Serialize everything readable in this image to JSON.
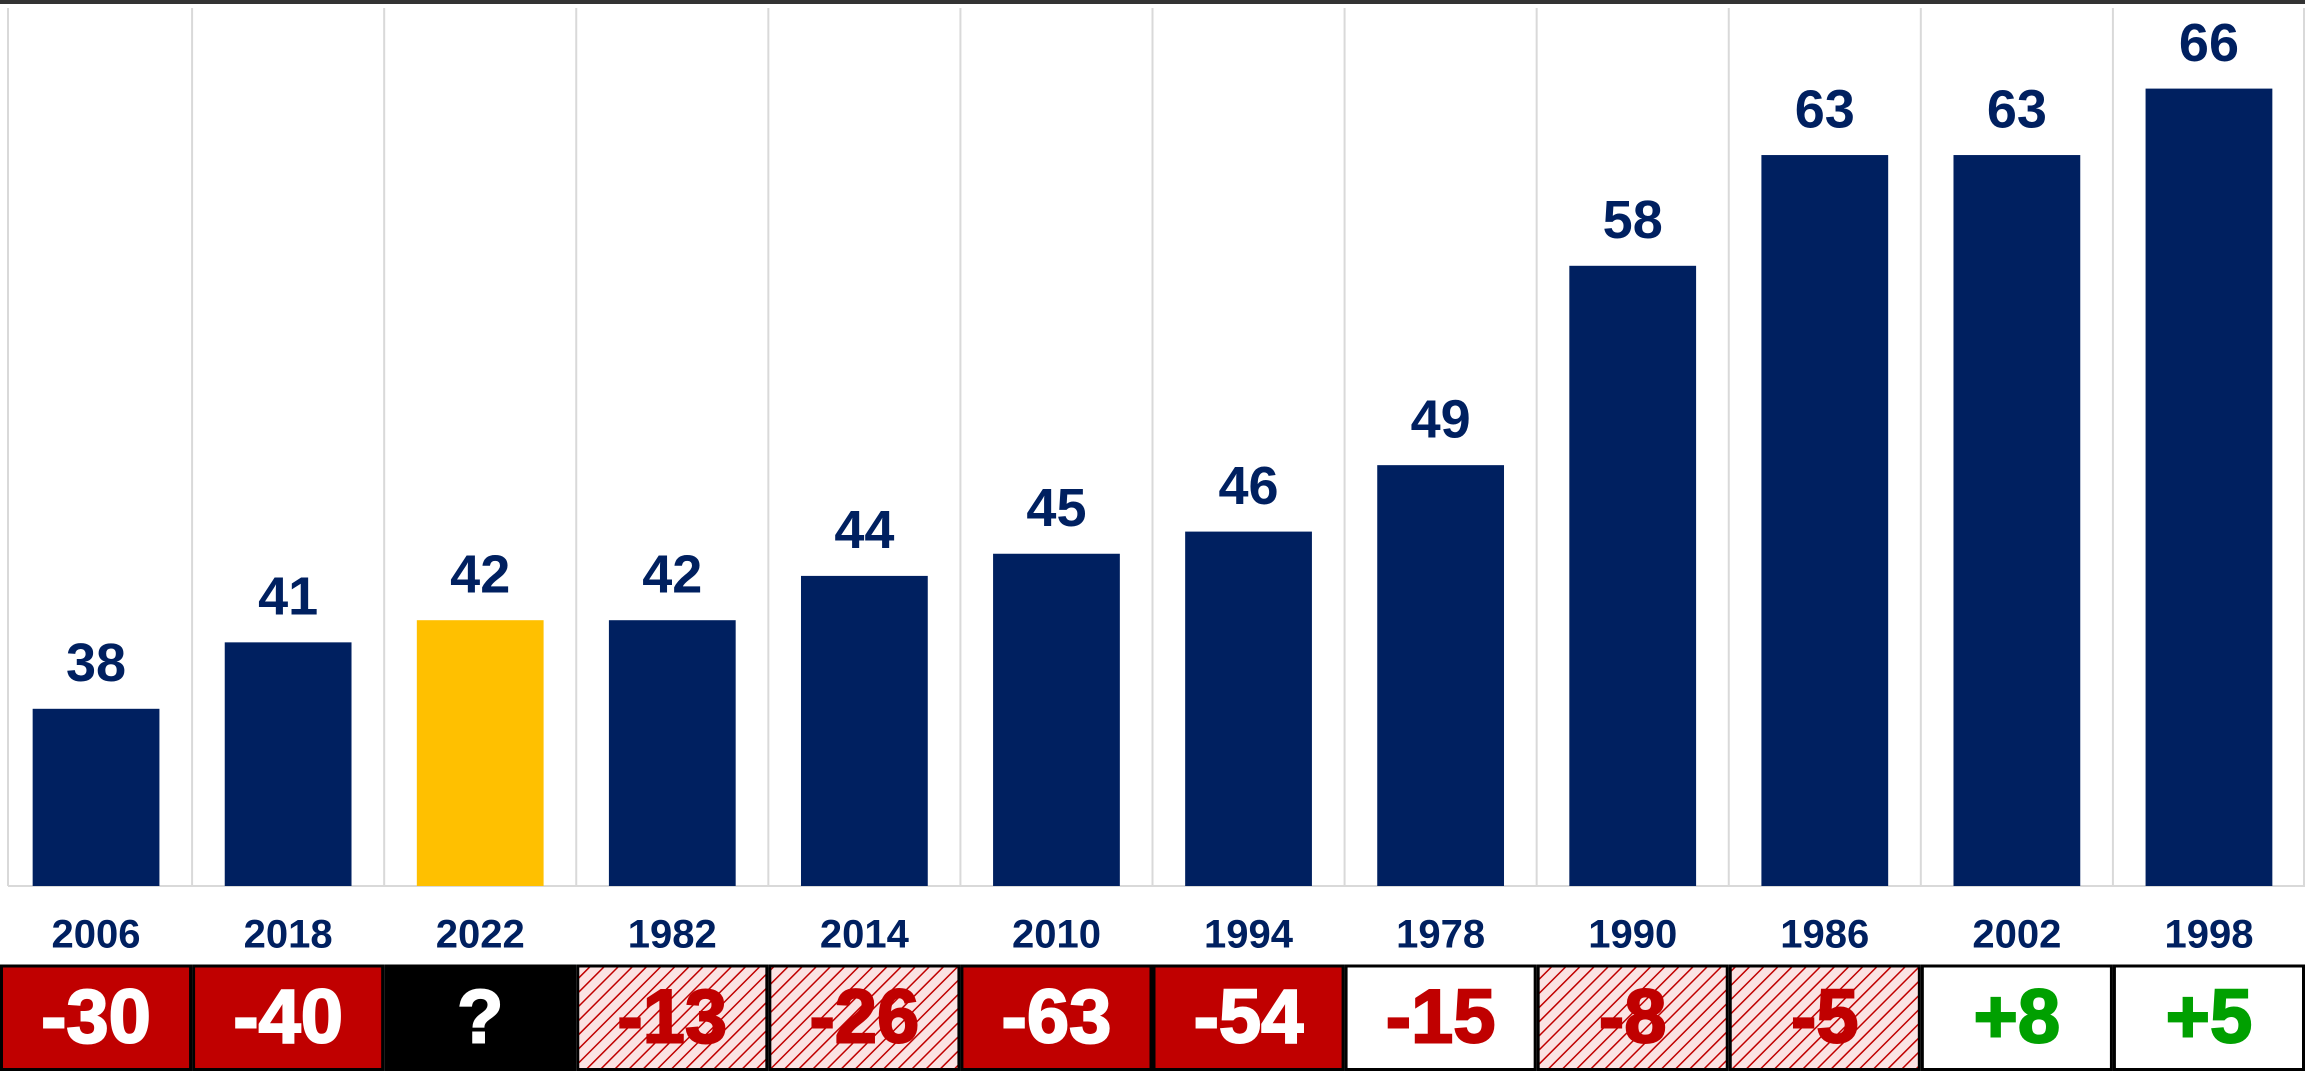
{
  "chart_data": {
    "type": "bar",
    "categories": [
      "2006",
      "2018",
      "2022",
      "1982",
      "2014",
      "2010",
      "1994",
      "1978",
      "1990",
      "1986",
      "2002",
      "1998"
    ],
    "values": [
      38,
      41,
      42,
      42,
      44,
      45,
      46,
      49,
      58,
      63,
      63,
      66
    ],
    "colors": [
      "#002060",
      "#002060",
      "#ffc000",
      "#002060",
      "#002060",
      "#002060",
      "#002060",
      "#002060",
      "#002060",
      "#002060",
      "#002060",
      "#002060"
    ],
    "ylim": [
      30,
      70
    ],
    "change_labels": [
      "-30",
      "-40",
      "?",
      "-13",
      "-26",
      "-63",
      "-54",
      "-15",
      "-8",
      "-5",
      "+8",
      "+5"
    ],
    "change_styles": [
      "red",
      "red",
      "black",
      "hatched",
      "hatched",
      "red",
      "red",
      "white-red",
      "hatched",
      "hatched",
      "white-green",
      "white-green"
    ]
  }
}
